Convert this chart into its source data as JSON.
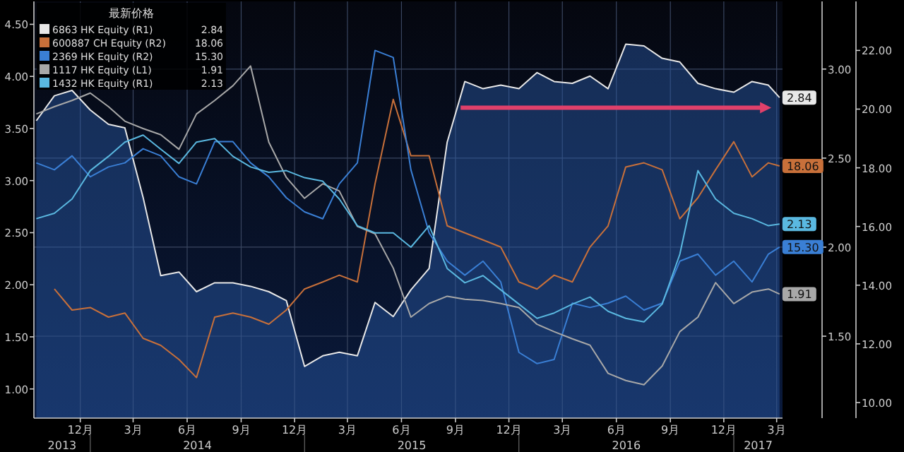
{
  "chart_data": {
    "type": "line",
    "legend_title": "最新价格",
    "legend": "top left",
    "grid": true,
    "x": [
      "2013-10-01",
      "2013-11-01",
      "2013-12-01",
      "2014-01-01",
      "2014-02-01",
      "2014-03-01",
      "2014-04-01",
      "2014-05-01",
      "2014-06-01",
      "2014-07-01",
      "2014-08-01",
      "2014-09-01",
      "2014-10-01",
      "2014-11-01",
      "2014-12-01",
      "2015-01-01",
      "2015-02-01",
      "2015-03-01",
      "2015-04-01",
      "2015-05-01",
      "2015-06-01",
      "2015-07-01",
      "2015-08-01",
      "2015-09-01",
      "2015-10-01",
      "2015-11-01",
      "2015-12-01",
      "2016-01-01",
      "2016-02-01",
      "2016-03-01",
      "2016-04-01",
      "2016-05-01",
      "2016-06-01",
      "2016-07-01",
      "2016-08-01",
      "2016-09-01",
      "2016-10-01",
      "2016-11-01",
      "2016-12-01",
      "2017-01-01",
      "2017-02-01",
      "2017-03-01",
      "2017-03-20"
    ],
    "xlim": [
      "2013-09-27",
      "2017-03-25"
    ],
    "xticks": [
      {
        "value": "2013-12-15",
        "label": "12月"
      },
      {
        "value": "2014-03-15",
        "label": "3月"
      },
      {
        "value": "2014-06-15",
        "label": "6月"
      },
      {
        "value": "2014-09-15",
        "label": "9月"
      },
      {
        "value": "2014-12-15",
        "label": "12月"
      },
      {
        "value": "2015-03-15",
        "label": "3月"
      },
      {
        "value": "2015-06-15",
        "label": "6月"
      },
      {
        "value": "2015-09-15",
        "label": "9月"
      },
      {
        "value": "2015-12-15",
        "label": "12月"
      },
      {
        "value": "2016-03-15",
        "label": "3月"
      },
      {
        "value": "2016-06-15",
        "label": "6月"
      },
      {
        "value": "2016-09-15",
        "label": "9月"
      },
      {
        "value": "2016-12-15",
        "label": "12月"
      },
      {
        "value": "2017-03-15",
        "label": "3月"
      }
    ],
    "ylim": [
      0.72,
      4.72
    ],
    "yticks": [
      {
        "value": 1,
        "label": "1.00"
      },
      {
        "value": 1.5,
        "label": "1.50"
      },
      {
        "value": 2,
        "label": "2.00"
      },
      {
        "value": 2.5,
        "label": "2.50"
      },
      {
        "value": 3,
        "label": "3.00"
      },
      {
        "value": 3.5,
        "label": "3.50"
      },
      {
        "value": 4,
        "label": "4.00"
      },
      {
        "value": 4.5,
        "label": "4.50"
      }
    ],
    "y2lim": [
      1.04,
      3.38
    ],
    "y2ticks": [
      {
        "value": 1.5,
        "label": "1.50"
      },
      {
        "value": 2,
        "label": "2.00"
      },
      {
        "value": 2.5,
        "label": "2.50"
      },
      {
        "value": 3,
        "label": "3.00"
      }
    ],
    "y3lim": [
      9.47,
      23.67
    ],
    "y3ticks": [
      {
        "value": 10,
        "label": "10.00"
      },
      {
        "value": 12,
        "label": "12.00"
      },
      {
        "value": 14,
        "label": "14.00"
      },
      {
        "value": 16,
        "label": "16.00"
      },
      {
        "value": 18,
        "label": "18.00"
      },
      {
        "value": 20,
        "label": "20.00"
      },
      {
        "value": 22,
        "label": "22.00"
      }
    ],
    "annotations": [
      "2013",
      "2014",
      "2015",
      "2016",
      "2017"
    ],
    "series": [
      {
        "name": "6863 HK Equity  (R1)",
        "type": "area",
        "axis": "y2",
        "color": "#e8e8e8",
        "values": [
          2.71,
          2.85,
          2.88,
          2.77,
          2.69,
          2.67,
          2.28,
          1.84,
          1.86,
          1.75,
          1.8,
          1.8,
          1.78,
          1.75,
          1.7,
          1.33,
          1.39,
          1.41,
          1.39,
          1.69,
          1.61,
          1.76,
          1.88,
          2.59,
          2.93,
          2.89,
          2.91,
          2.89,
          2.98,
          2.93,
          2.92,
          2.96,
          2.89,
          3.14,
          3.13,
          3.06,
          3.04,
          2.92,
          2.89,
          2.87,
          2.93,
          2.91,
          2.84
        ],
        "value_labels": [
          null,
          null,
          null,
          null,
          null,
          null,
          null,
          null,
          null,
          null,
          null,
          null,
          null,
          null,
          null,
          null,
          null,
          null,
          null,
          null,
          null,
          null,
          null,
          null,
          null,
          null,
          null,
          null,
          null,
          null,
          null,
          null,
          null,
          null,
          null,
          null,
          null,
          null,
          null,
          null,
          null,
          null,
          "2.84"
        ]
      },
      {
        "name": "600887 CH Equity  (R2)",
        "axis": "y3",
        "color": "#c8703a",
        "values": [
          null,
          13.87,
          13.15,
          13.24,
          12.91,
          13.05,
          12.19,
          11.95,
          11.47,
          10.85,
          12.91,
          13.05,
          12.91,
          12.67,
          13.15,
          13.87,
          14.11,
          14.34,
          14.11,
          17.45,
          20.33,
          18.41,
          18.41,
          16.02,
          15.78,
          15.54,
          15.3,
          14.11,
          13.87,
          14.34,
          14.11,
          15.3,
          16.02,
          18.03,
          18.17,
          17.93,
          16.26,
          16.98,
          17.93,
          18.89,
          17.69,
          18.17,
          18.06
        ],
        "value_labels": [
          null,
          null,
          null,
          null,
          null,
          null,
          null,
          null,
          null,
          null,
          null,
          null,
          null,
          null,
          null,
          null,
          null,
          null,
          null,
          null,
          null,
          null,
          null,
          null,
          null,
          null,
          null,
          null,
          null,
          null,
          null,
          null,
          null,
          null,
          null,
          null,
          null,
          null,
          null,
          null,
          null,
          null,
          "18.06"
        ]
      },
      {
        "name": "2369 HK Equity  (R2)",
        "axis": "y3",
        "color": "#3a7fd5",
        "values": [
          18.17,
          17.93,
          18.41,
          17.69,
          18.03,
          18.17,
          18.65,
          18.41,
          17.69,
          17.45,
          18.89,
          18.89,
          18.17,
          17.69,
          16.98,
          16.5,
          16.26,
          17.45,
          18.17,
          22.0,
          21.76,
          17.93,
          15.78,
          14.82,
          14.34,
          14.82,
          14.11,
          11.71,
          11.33,
          11.47,
          13.39,
          13.24,
          13.39,
          13.63,
          13.15,
          13.39,
          14.82,
          15.06,
          14.34,
          14.82,
          14.11,
          15.06,
          15.3
        ],
        "value_labels": [
          null,
          null,
          null,
          null,
          null,
          null,
          null,
          null,
          null,
          null,
          null,
          null,
          null,
          null,
          null,
          null,
          null,
          null,
          null,
          null,
          null,
          null,
          null,
          null,
          null,
          null,
          null,
          null,
          null,
          null,
          null,
          null,
          null,
          null,
          null,
          null,
          null,
          null,
          null,
          null,
          null,
          null,
          "15.30"
        ]
      },
      {
        "name": "1117 HK Equity  (L1)",
        "axis": "y",
        "color": "#a8a8a8",
        "values": [
          3.64,
          3.71,
          3.77,
          3.84,
          3.71,
          3.57,
          3.5,
          3.44,
          3.3,
          3.64,
          3.77,
          3.91,
          4.1,
          3.37,
          3.03,
          2.83,
          2.97,
          2.9,
          2.56,
          2.49,
          2.16,
          1.69,
          1.82,
          1.89,
          1.86,
          1.85,
          1.82,
          1.78,
          1.62,
          1.55,
          1.48,
          1.42,
          1.15,
          1.08,
          1.04,
          1.22,
          1.55,
          1.69,
          2.02,
          1.82,
          1.93,
          1.96,
          1.91
        ],
        "value_labels": [
          null,
          null,
          null,
          null,
          null,
          null,
          null,
          null,
          null,
          null,
          null,
          null,
          null,
          null,
          null,
          null,
          null,
          null,
          null,
          null,
          null,
          null,
          null,
          null,
          null,
          null,
          null,
          null,
          null,
          null,
          null,
          null,
          null,
          null,
          null,
          null,
          null,
          null,
          null,
          null,
          null,
          null,
          "1.91"
        ]
      },
      {
        "name": "1432 HK Equity  (R1)",
        "axis": "y2",
        "color": "#5ab8e0",
        "values": [
          2.16,
          2.19,
          2.27,
          2.43,
          2.51,
          2.59,
          2.63,
          2.55,
          2.47,
          2.59,
          2.61,
          2.51,
          2.45,
          2.42,
          2.43,
          2.39,
          2.37,
          2.27,
          2.12,
          2.08,
          2.08,
          2.0,
          2.12,
          1.88,
          1.8,
          1.84,
          1.76,
          1.68,
          1.6,
          1.63,
          1.68,
          1.72,
          1.64,
          1.6,
          1.58,
          1.68,
          1.96,
          2.43,
          2.27,
          2.19,
          2.16,
          2.12,
          2.13
        ],
        "value_labels": [
          null,
          null,
          null,
          null,
          null,
          null,
          null,
          null,
          null,
          null,
          null,
          null,
          null,
          null,
          null,
          null,
          null,
          null,
          null,
          null,
          null,
          null,
          null,
          null,
          null,
          null,
          null,
          null,
          null,
          null,
          null,
          null,
          null,
          null,
          null,
          null,
          null,
          null,
          null,
          null,
          null,
          null,
          "2.13"
        ]
      }
    ]
  }
}
